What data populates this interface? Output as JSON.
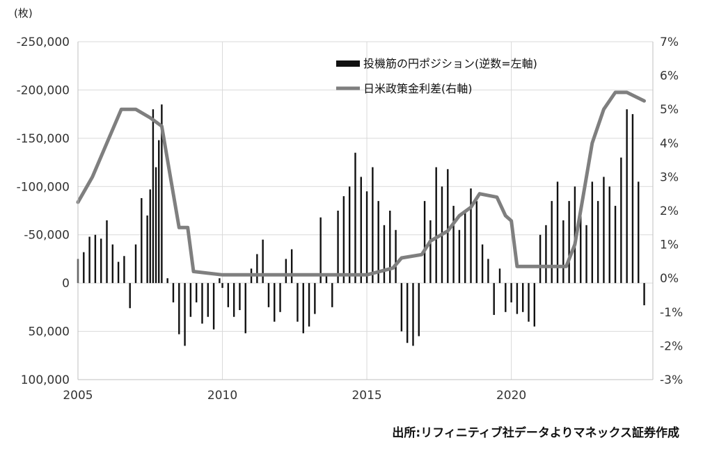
{
  "chart_data": {
    "type": "bar+line",
    "y_unit_label": "(枚)",
    "left_axis": {
      "ticks": [
        -250000,
        -200000,
        -150000,
        -100000,
        -50000,
        0,
        50000,
        100000
      ],
      "tick_labels": [
        "-250,000",
        "-200,000",
        "-150,000",
        "-100,000",
        "-50,000",
        "0",
        "50,000",
        "100,000"
      ],
      "ylim": [
        -250000,
        100000
      ],
      "inverted": true
    },
    "right_axis": {
      "ticks": [
        7,
        6,
        5,
        4,
        3,
        2,
        1,
        0,
        -1,
        -2,
        -3
      ],
      "tick_labels": [
        "7%",
        "6%",
        "5%",
        "4%",
        "3%",
        "2%",
        "1%",
        "0%",
        "-1%",
        "-2%",
        "-3%"
      ],
      "ylim": [
        -3,
        7
      ]
    },
    "x_axis": {
      "ticks": [
        2005,
        2010,
        2015,
        2020
      ],
      "tick_labels": [
        "2005",
        "2010",
        "2015",
        "2020"
      ],
      "xlim": [
        2005,
        2024.9
      ]
    },
    "legend": {
      "placement": "top-center",
      "bar_label": "投機筋の円ポジション(逆数=左軸)",
      "line_label": "日米政策金利差(右軸)"
    },
    "colors": {
      "bar": "#111111",
      "line": "#7f7f7f",
      "grid": "#d9d9d9"
    },
    "series": [
      {
        "name": "投機筋の円ポジション(逆数=左軸)",
        "kind": "bar",
        "axis": "left",
        "points": [
          [
            2005.0,
            -25000
          ],
          [
            2005.2,
            -32000
          ],
          [
            2005.4,
            -48000
          ],
          [
            2005.6,
            -50000
          ],
          [
            2005.8,
            -46000
          ],
          [
            2006.0,
            -65000
          ],
          [
            2006.2,
            -40000
          ],
          [
            2006.4,
            -22000
          ],
          [
            2006.6,
            -28000
          ],
          [
            2006.8,
            26000
          ],
          [
            2007.0,
            -40000
          ],
          [
            2007.2,
            -88000
          ],
          [
            2007.4,
            -70000
          ],
          [
            2007.5,
            -97000
          ],
          [
            2007.6,
            -180000
          ],
          [
            2007.7,
            -120000
          ],
          [
            2007.8,
            -148000
          ],
          [
            2007.9,
            -185000
          ],
          [
            2008.1,
            -5000
          ],
          [
            2008.3,
            20000
          ],
          [
            2008.5,
            53000
          ],
          [
            2008.7,
            65000
          ],
          [
            2008.9,
            35000
          ],
          [
            2009.1,
            20000
          ],
          [
            2009.3,
            42000
          ],
          [
            2009.5,
            35000
          ],
          [
            2009.7,
            48000
          ],
          [
            2009.9,
            -5000
          ],
          [
            2010.0,
            5000
          ],
          [
            2010.2,
            25000
          ],
          [
            2010.4,
            35000
          ],
          [
            2010.6,
            28000
          ],
          [
            2010.8,
            52000
          ],
          [
            2011.0,
            -15000
          ],
          [
            2011.2,
            -30000
          ],
          [
            2011.4,
            -45000
          ],
          [
            2011.6,
            25000
          ],
          [
            2011.8,
            40000
          ],
          [
            2012.0,
            30000
          ],
          [
            2012.2,
            -25000
          ],
          [
            2012.4,
            -35000
          ],
          [
            2012.6,
            40000
          ],
          [
            2012.8,
            52000
          ],
          [
            2013.0,
            45000
          ],
          [
            2013.2,
            32000
          ],
          [
            2013.4,
            -68000
          ],
          [
            2013.6,
            -10000
          ],
          [
            2013.8,
            25000
          ],
          [
            2014.0,
            -75000
          ],
          [
            2014.2,
            -90000
          ],
          [
            2014.4,
            -100000
          ],
          [
            2014.6,
            -135000
          ],
          [
            2014.8,
            -110000
          ],
          [
            2015.0,
            -95000
          ],
          [
            2015.2,
            -120000
          ],
          [
            2015.4,
            -85000
          ],
          [
            2015.6,
            -60000
          ],
          [
            2015.8,
            -75000
          ],
          [
            2016.0,
            -55000
          ],
          [
            2016.2,
            50000
          ],
          [
            2016.4,
            62000
          ],
          [
            2016.6,
            65000
          ],
          [
            2016.8,
            55000
          ],
          [
            2017.0,
            -85000
          ],
          [
            2017.2,
            -65000
          ],
          [
            2017.4,
            -120000
          ],
          [
            2017.6,
            -100000
          ],
          [
            2017.8,
            -118000
          ],
          [
            2018.0,
            -80000
          ],
          [
            2018.2,
            -55000
          ],
          [
            2018.4,
            -75000
          ],
          [
            2018.6,
            -98000
          ],
          [
            2018.8,
            -85000
          ],
          [
            2019.0,
            -40000
          ],
          [
            2019.2,
            -25000
          ],
          [
            2019.4,
            33000
          ],
          [
            2019.6,
            -15000
          ],
          [
            2019.8,
            30000
          ],
          [
            2020.0,
            20000
          ],
          [
            2020.2,
            32000
          ],
          [
            2020.4,
            30000
          ],
          [
            2020.6,
            40000
          ],
          [
            2020.8,
            45000
          ],
          [
            2021.0,
            -50000
          ],
          [
            2021.2,
            -60000
          ],
          [
            2021.4,
            -85000
          ],
          [
            2021.6,
            -105000
          ],
          [
            2021.8,
            -65000
          ],
          [
            2022.0,
            -85000
          ],
          [
            2022.2,
            -100000
          ],
          [
            2022.4,
            -75000
          ],
          [
            2022.6,
            -60000
          ],
          [
            2022.8,
            -105000
          ],
          [
            2023.0,
            -85000
          ],
          [
            2023.2,
            -110000
          ],
          [
            2023.4,
            -100000
          ],
          [
            2023.6,
            -80000
          ],
          [
            2023.8,
            -130000
          ],
          [
            2024.0,
            -180000
          ],
          [
            2024.2,
            -175000
          ],
          [
            2024.4,
            -105000
          ],
          [
            2024.6,
            23000
          ]
        ]
      },
      {
        "name": "日米政策金利差(右軸)",
        "kind": "line",
        "axis": "right",
        "points": [
          [
            2005.0,
            2.25
          ],
          [
            2005.5,
            3.0
          ],
          [
            2006.0,
            4.0
          ],
          [
            2006.5,
            5.0
          ],
          [
            2007.0,
            5.0
          ],
          [
            2007.5,
            4.75
          ],
          [
            2007.9,
            4.5
          ],
          [
            2008.2,
            3.0
          ],
          [
            2008.5,
            1.5
          ],
          [
            2008.8,
            1.5
          ],
          [
            2009.0,
            0.2
          ],
          [
            2010.0,
            0.1
          ],
          [
            2015.0,
            0.1
          ],
          [
            2015.9,
            0.3
          ],
          [
            2016.2,
            0.6
          ],
          [
            2016.9,
            0.7
          ],
          [
            2017.2,
            1.1
          ],
          [
            2017.8,
            1.4
          ],
          [
            2018.2,
            1.85
          ],
          [
            2018.6,
            2.1
          ],
          [
            2018.9,
            2.5
          ],
          [
            2019.5,
            2.4
          ],
          [
            2019.8,
            1.85
          ],
          [
            2020.0,
            1.7
          ],
          [
            2020.2,
            0.35
          ],
          [
            2021.9,
            0.35
          ],
          [
            2022.2,
            1.0
          ],
          [
            2022.5,
            2.5
          ],
          [
            2022.8,
            4.0
          ],
          [
            2023.2,
            5.0
          ],
          [
            2023.6,
            5.5
          ],
          [
            2024.0,
            5.5
          ],
          [
            2024.6,
            5.25
          ]
        ]
      }
    ]
  },
  "source_note": "出所:リフィニティブ社データよりマネックス証券作成"
}
